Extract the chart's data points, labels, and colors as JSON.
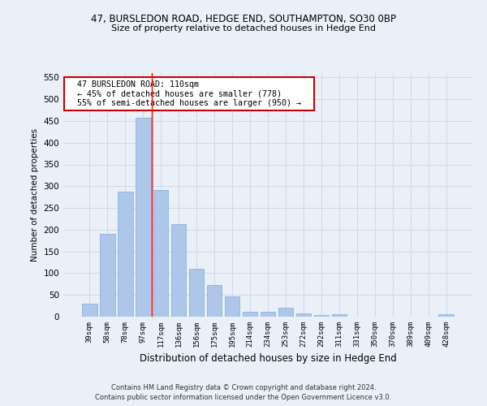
{
  "title_line1": "47, BURSLEDON ROAD, HEDGE END, SOUTHAMPTON, SO30 0BP",
  "title_line2": "Size of property relative to detached houses in Hedge End",
  "xlabel": "Distribution of detached houses by size in Hedge End",
  "ylabel": "Number of detached properties",
  "categories": [
    "39sqm",
    "58sqm",
    "78sqm",
    "97sqm",
    "117sqm",
    "136sqm",
    "156sqm",
    "175sqm",
    "195sqm",
    "214sqm",
    "234sqm",
    "253sqm",
    "272sqm",
    "292sqm",
    "311sqm",
    "331sqm",
    "350sqm",
    "370sqm",
    "389sqm",
    "409sqm",
    "428sqm"
  ],
  "values": [
    30,
    190,
    287,
    457,
    291,
    213,
    110,
    73,
    46,
    12,
    12,
    21,
    8,
    4,
    6,
    0,
    0,
    0,
    0,
    0,
    5
  ],
  "bar_color": "#aec6e8",
  "bar_edge_color": "#7bafd4",
  "grid_color": "#d0d8e8",
  "background_color": "#eaf0f8",
  "red_line_x": 3.5,
  "annotation_text": "  47 BURSLEDON ROAD: 110sqm  \n  ← 45% of detached houses are smaller (778)  \n  55% of semi-detached houses are larger (950) →  ",
  "annotation_box_color": "#ffffff",
  "annotation_border_color": "#cc0000",
  "footnote1": "Contains HM Land Registry data © Crown copyright and database right 2024.",
  "footnote2": "Contains public sector information licensed under the Open Government Licence v3.0.",
  "ylim": [
    0,
    560
  ],
  "yticks": [
    0,
    50,
    100,
    150,
    200,
    250,
    300,
    350,
    400,
    450,
    500,
    550
  ]
}
